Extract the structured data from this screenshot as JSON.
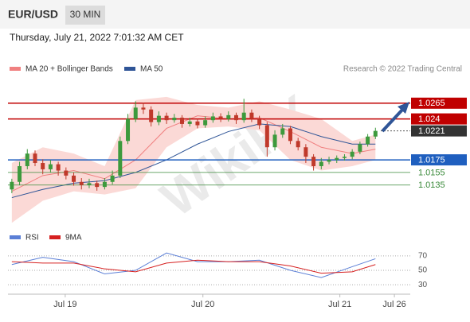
{
  "chart_data": {
    "type": "candlestick",
    "symbol": "EUR/USD",
    "timeframe": "30 MIN",
    "timestamp": "Thursday, July 21, 2022 7:01:32 AM CET",
    "credit": "Research © 2022 Trading Central",
    "watermark": "WikiFX",
    "x": [
      0,
      1,
      2,
      3,
      4,
      5,
      6,
      7,
      8,
      9,
      10,
      11,
      12,
      13,
      14,
      15,
      16,
      17,
      18,
      19,
      20,
      21,
      22,
      23,
      24,
      25,
      26,
      27,
      28,
      29,
      30,
      31,
      32,
      33,
      34,
      35,
      36,
      37,
      38,
      39,
      40,
      41,
      42,
      43,
      44,
      45,
      46,
      47
    ],
    "candles": {
      "open": [
        1.0128,
        1.014,
        1.0165,
        1.0185,
        1.017,
        1.016,
        1.0168,
        1.0158,
        1.015,
        1.014,
        1.0135,
        1.0138,
        1.0132,
        1.014,
        1.015,
        1.0205,
        1.024,
        1.0258,
        1.0255,
        1.0235,
        1.0245,
        1.0238,
        1.0242,
        1.0232,
        1.0236,
        1.023,
        1.0238,
        1.0244,
        1.024,
        1.0246,
        1.0238,
        1.025,
        1.024,
        1.023,
        1.0195,
        1.0215,
        1.0225,
        1.0205,
        1.0195,
        1.018,
        1.0165,
        1.0172,
        1.0175,
        1.0178,
        1.018,
        1.0188,
        1.02,
        1.0212
      ],
      "high": [
        1.0145,
        1.0172,
        1.0192,
        1.019,
        1.0176,
        1.0175,
        1.0172,
        1.0163,
        1.0155,
        1.0146,
        1.0145,
        1.0142,
        1.0146,
        1.0158,
        1.0212,
        1.0248,
        1.0268,
        1.0266,
        1.026,
        1.0252,
        1.025,
        1.0248,
        1.0246,
        1.0242,
        1.024,
        1.0244,
        1.025,
        1.0249,
        1.0252,
        1.025,
        1.0272,
        1.0255,
        1.0245,
        1.0235,
        1.0222,
        1.0232,
        1.0229,
        1.021,
        1.02,
        1.0184,
        1.0178,
        1.018,
        1.0182,
        1.0184,
        1.0192,
        1.0204,
        1.0216,
        1.0226
      ],
      "low": [
        1.0122,
        1.0135,
        1.016,
        1.0165,
        1.0152,
        1.0155,
        1.015,
        1.0144,
        1.0134,
        1.0128,
        1.013,
        1.0126,
        1.0128,
        1.0136,
        1.0146,
        1.02,
        1.0235,
        1.0248,
        1.0228,
        1.023,
        1.0232,
        1.0234,
        1.0226,
        1.0228,
        1.0225,
        1.0226,
        1.0234,
        1.0235,
        1.0236,
        1.0232,
        1.0234,
        1.0235,
        1.0224,
        1.018,
        1.019,
        1.021,
        1.02,
        1.019,
        1.017,
        1.0158,
        1.016,
        1.0168,
        1.017,
        1.0174,
        1.0176,
        1.0184,
        1.0196,
        1.0208
      ],
      "close": [
        1.014,
        1.0165,
        1.0185,
        1.017,
        1.016,
        1.0168,
        1.0158,
        1.015,
        1.014,
        1.0135,
        1.0138,
        1.0132,
        1.014,
        1.015,
        1.0205,
        1.024,
        1.0258,
        1.0255,
        1.0235,
        1.0245,
        1.0238,
        1.0242,
        1.0232,
        1.0236,
        1.023,
        1.0238,
        1.0244,
        1.024,
        1.0246,
        1.0238,
        1.025,
        1.024,
        1.023,
        1.0195,
        1.0215,
        1.0225,
        1.0205,
        1.0195,
        1.018,
        1.0165,
        1.0172,
        1.0175,
        1.0178,
        1.018,
        1.0188,
        1.02,
        1.0212,
        1.0221
      ],
      "up_color": "#3d9a3d",
      "down_color": "#c0392b"
    },
    "bands": {
      "name": "MA 20 + Bollinger Bands",
      "color": "#f08080",
      "fill": "#fbd9d6",
      "x": [
        0,
        4,
        8,
        12,
        16,
        20,
        24,
        28,
        32,
        36,
        40,
        44,
        47
      ],
      "upper": [
        1.017,
        1.0195,
        1.0185,
        1.0165,
        1.027,
        1.0275,
        1.0262,
        1.0258,
        1.0268,
        1.0255,
        1.024,
        1.0205,
        1.0215
      ],
      "lower": [
        1.0075,
        1.011,
        1.0125,
        1.012,
        1.013,
        1.0195,
        1.0225,
        1.0228,
        1.0222,
        1.0175,
        1.0158,
        1.0165,
        1.0175
      ],
      "values": [
        1.0125,
        1.015,
        1.0158,
        1.0145,
        1.0175,
        1.0225,
        1.0245,
        1.024,
        1.0242,
        1.022,
        1.0195,
        1.0185,
        1.0192
      ]
    },
    "ma50": {
      "name": "MA 50",
      "color": "#2f5597",
      "x": [
        0,
        4,
        8,
        12,
        16,
        20,
        24,
        28,
        32,
        36,
        40,
        44,
        47
      ],
      "values": [
        1.0115,
        1.0128,
        1.0138,
        1.0142,
        1.0155,
        1.0175,
        1.02,
        1.022,
        1.0232,
        1.0228,
        1.0212,
        1.02,
        1.02
      ]
    },
    "levels": [
      {
        "value": 1.0265,
        "color": "#c00000",
        "boxed": true
      },
      {
        "value": 1.024,
        "color": "#c00000",
        "boxed": true
      },
      {
        "value": 1.0221,
        "color": "#333333",
        "boxed": true,
        "dotted": true
      },
      {
        "value": 1.0175,
        "color": "#1f5fbf",
        "boxed": true
      },
      {
        "value": 1.0155,
        "color": "#3a8a3a",
        "boxed": false
      },
      {
        "value": 1.0135,
        "color": "#3a8a3a",
        "boxed": false
      }
    ],
    "ylim": [
      1.0069,
      1.029
    ],
    "xlim": [
      -0.5,
      51.5
    ],
    "xticks": [
      {
        "value": 6.9,
        "label": "Jul 19"
      },
      {
        "value": 24.7,
        "label": "Jul 20"
      },
      {
        "value": 42.4,
        "label": "Jul 21"
      },
      {
        "value": 49.45,
        "label": "Jul 26"
      }
    ],
    "rsi": {
      "name": "RSI",
      "color": "#5b7fd6",
      "x": [
        0,
        4,
        8,
        12,
        16,
        20,
        24,
        28,
        32,
        36,
        40,
        44,
        47
      ],
      "values": [
        58,
        68,
        62,
        45,
        50,
        74,
        62,
        62,
        64,
        50,
        40,
        55,
        66
      ]
    },
    "ma9": {
      "name": "9MA",
      "color": "#d62020",
      "x": [
        0,
        4,
        8,
        12,
        16,
        20,
        24,
        28,
        32,
        36,
        40,
        44,
        47
      ],
      "values": [
        62,
        60,
        60,
        52,
        48,
        60,
        64,
        62,
        62,
        56,
        46,
        48,
        58
      ]
    },
    "rsi_ylim": [
      17,
      83
    ],
    "rsi_yticks": [
      70,
      50,
      30
    ]
  }
}
